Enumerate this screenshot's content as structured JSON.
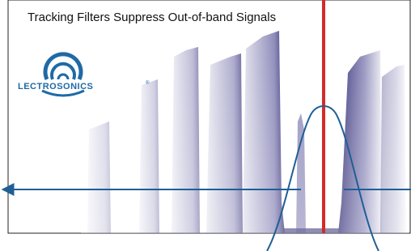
{
  "header": {
    "title": "Tracking Filters Suppress Out-of-band Signals"
  },
  "logo": {
    "name": "LECTROSONICS",
    "mark": "®"
  }
}
